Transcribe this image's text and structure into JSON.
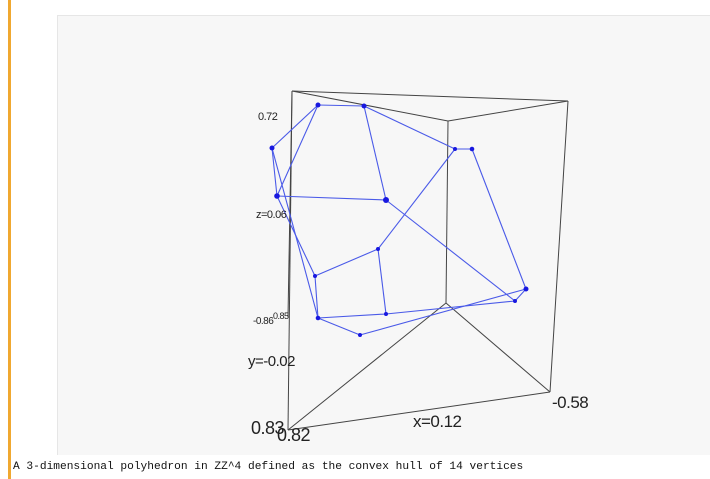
{
  "viewer": {
    "axis_labels": {
      "z_max": "0.72",
      "z_mid": "z=0.06",
      "z_min_a": "-0.86",
      "z_min_b": "0.85",
      "y_mid": "y=-0.02",
      "y_min": "0.83",
      "x_min": "0.82",
      "x_mid": "x=0.12",
      "x_max": "-0.58"
    },
    "box_color": "#444444",
    "edge_color": "#4a5ae8",
    "vertex_color": "#1818e0"
  },
  "caption": "A 3-dimensional polyhedron in ZZ^4 defined as the convex hull of 14 vertices"
}
